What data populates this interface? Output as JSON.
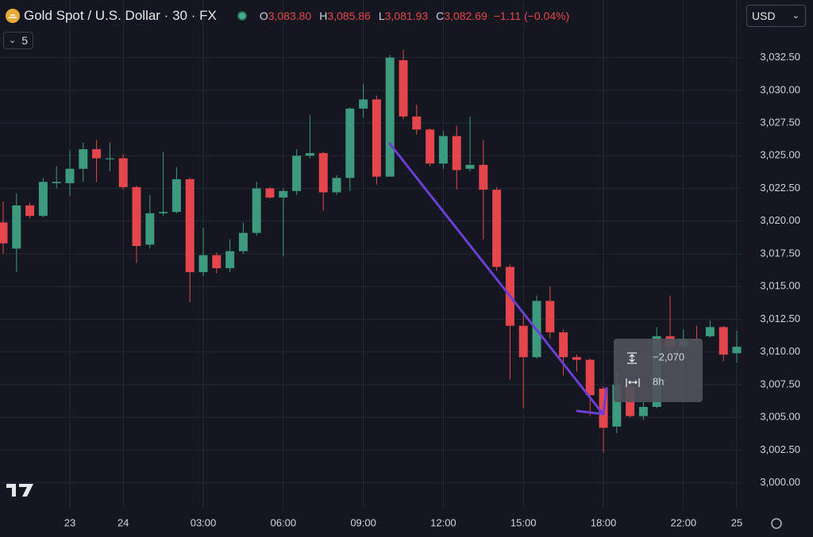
{
  "header": {
    "title": "Gold Spot / U.S. Dollar · 30 · FX",
    "ohlc": [
      {
        "label": "O",
        "value": "3,083.80"
      },
      {
        "label": "H",
        "value": "3,085.86"
      },
      {
        "label": "L",
        "value": "3,081.93"
      },
      {
        "label": "C",
        "value": "3,082.69"
      }
    ],
    "change": "−1.11 (−0.04%)",
    "currency": "USD",
    "indicators": "5"
  },
  "chart_data": {
    "type": "candlestick",
    "categories": [
      null,
      null,
      null,
      null,
      null,
      "23",
      null,
      null,
      null,
      "24",
      null,
      null,
      null,
      null,
      null,
      "03:00",
      null,
      null,
      null,
      null,
      null,
      "06:00",
      null,
      null,
      null,
      null,
      null,
      "09:00",
      null,
      null,
      null,
      null,
      null,
      "12:00",
      null,
      null,
      null,
      null,
      null,
      "15:00",
      null,
      null,
      null,
      null,
      null,
      "18:00",
      null,
      null,
      null,
      null,
      null,
      "22:00",
      null,
      null,
      null,
      "25"
    ],
    "open": [
      3019.9,
      3017.9,
      3021.2,
      3020.4,
      3022.9,
      3022.9,
      3024.0,
      3025.5,
      3024.8,
      3024.8,
      3022.6,
      3018.2,
      3020.6,
      3020.7,
      3023.2,
      3016.1,
      3017.4,
      3016.4,
      3017.7,
      3019.1,
      3022.5,
      3021.8,
      3022.3,
      3025.0,
      3025.2,
      3022.2,
      3023.3,
      3028.6,
      3029.3,
      3023.4,
      3032.3,
      3028.0,
      3027.0,
      3024.4,
      3026.5,
      3024.0,
      3024.3,
      3022.4,
      3016.5,
      3012.0,
      3009.6,
      3013.9,
      3011.5,
      3009.6,
      3009.4,
      3007.2,
      3004.3,
      3007.3,
      3005.1,
      3005.8,
      3011.2,
      3010.4,
      3011.0,
      3011.2,
      3011.9,
      3009.9
    ],
    "high": [
      3021.5,
      3022.1,
      3021.4,
      3023.3,
      3024.2,
      3025.4,
      3026.0,
      3026.2,
      3026.0,
      3025.1,
      3022.7,
      3022.0,
      3025.3,
      3024.1,
      3023.3,
      3019.5,
      3017.6,
      3018.6,
      3019.9,
      3023.0,
      3022.6,
      3022.5,
      3025.5,
      3028.1,
      3025.3,
      3023.5,
      3028.7,
      3030.5,
      3029.6,
      3032.7,
      3033.1,
      3028.9,
      3027.1,
      3026.9,
      3027.3,
      3028.0,
      3026.2,
      3022.6,
      3016.7,
      3013.0,
      3014.3,
      3015.0,
      3011.7,
      3009.8,
      3009.5,
      3007.4,
      3008.4,
      3007.5,
      3006.3,
      3011.9,
      3014.3,
      3011.7,
      3012.0,
      3012.4,
      3012.0,
      3011.6
    ],
    "low": [
      3017.5,
      3016.1,
      3020.2,
      3020.3,
      3022.5,
      3021.9,
      3023.0,
      3023.0,
      3023.8,
      3022.4,
      3016.8,
      3017.9,
      3020.4,
      3020.6,
      3013.8,
      3015.8,
      3016.0,
      3016.1,
      3017.5,
      3018.9,
      3021.7,
      3017.3,
      3022.0,
      3024.8,
      3020.8,
      3022.0,
      3022.3,
      3027.9,
      3022.8,
      3023.4,
      3027.8,
      3026.6,
      3024.2,
      3024.0,
      3022.4,
      3023.8,
      3018.6,
      3016.2,
      3007.9,
      3005.7,
      3009.5,
      3011.0,
      3008.2,
      3008.5,
      3005.1,
      3002.3,
      3003.8,
      3005.0,
      3004.8,
      3005.7,
      3009.9,
      3010.1,
      3010.6,
      3011.1,
      3009.3,
      3009.2
    ],
    "close": [
      3018.3,
      3021.2,
      3020.4,
      3023.0,
      3023.0,
      3024.0,
      3025.5,
      3024.8,
      3024.8,
      3022.6,
      3018.1,
      3020.6,
      3020.7,
      3023.2,
      3016.1,
      3017.4,
      3016.4,
      3017.7,
      3019.1,
      3022.5,
      3021.8,
      3022.3,
      3025.0,
      3025.2,
      3022.2,
      3023.3,
      3028.6,
      3029.3,
      3023.4,
      3032.5,
      3028.0,
      3027.0,
      3024.4,
      3026.5,
      3023.9,
      3024.3,
      3022.4,
      3016.5,
      3012.0,
      3009.6,
      3013.9,
      3011.5,
      3009.6,
      3009.4,
      3006.7,
      3004.2,
      3007.5,
      3005.1,
      3005.8,
      3011.2,
      3010.4,
      3011.0,
      3010.9,
      3011.9,
      3009.8,
      3010.4
    ],
    "up_color": "#3d9a7e",
    "down_color": "#e5464e",
    "ylim": [
      2998.1,
      3036.9
    ],
    "yticks": [
      {
        "value": 3000,
        "label": "3,000.00"
      },
      {
        "value": 3002.5,
        "label": "3,002.50"
      },
      {
        "value": 3005,
        "label": "3,005.00"
      },
      {
        "value": 3007.5,
        "label": "3,007.50"
      },
      {
        "value": 3010,
        "label": "3,010.00"
      },
      {
        "value": 3012.5,
        "label": "3,012.50"
      },
      {
        "value": 3015,
        "label": "3,015.00"
      },
      {
        "value": 3017.5,
        "label": "3,017.50"
      },
      {
        "value": 3020,
        "label": "3,020.00"
      },
      {
        "value": 3022.5,
        "label": "3,022.50"
      },
      {
        "value": 3025,
        "label": "3,025.00"
      },
      {
        "value": 3027.5,
        "label": "3,027.50"
      },
      {
        "value": 3030,
        "label": "3,030.00"
      },
      {
        "value": 3032.5,
        "label": "3,032.50"
      }
    ],
    "grid": true
  },
  "tooltip": {
    "price_range": "−2,070",
    "time_range": "8h"
  }
}
